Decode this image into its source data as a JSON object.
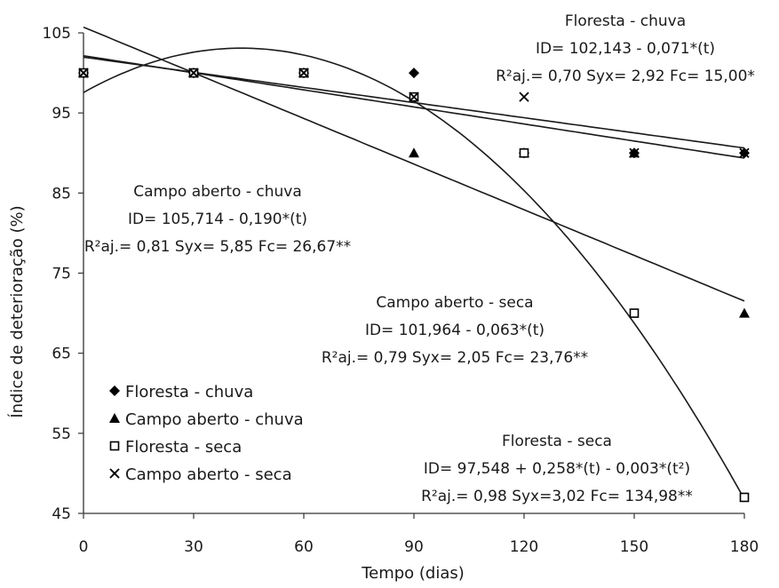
{
  "chart_data": {
    "type": "scatter",
    "xlabel": "Tempo (dias)",
    "ylabel": "Índice de deterioração (%)",
    "xlim": [
      0,
      180
    ],
    "ylim": [
      45,
      105
    ],
    "x_ticks": [
      0,
      30,
      60,
      90,
      120,
      150,
      180
    ],
    "y_ticks": [
      45,
      55,
      65,
      75,
      85,
      95,
      105
    ],
    "grid": false,
    "legend_position": "bottom-left",
    "series": [
      {
        "name": "Floresta - chuva",
        "marker": "diamond",
        "x": [
          0,
          30,
          60,
          90,
          120,
          150,
          180
        ],
        "y": [
          100,
          100,
          100,
          100,
          90,
          90,
          90
        ],
        "fit": {
          "type": "linear",
          "a": 102.143,
          "b": -0.071
        }
      },
      {
        "name": "Campo aberto - chuva",
        "marker": "triangle",
        "x": [
          0,
          30,
          60,
          90,
          120,
          150,
          180
        ],
        "y": [
          100,
          100,
          100,
          90,
          90,
          90,
          70
        ],
        "fit": {
          "type": "linear",
          "a": 105.714,
          "b": -0.19
        }
      },
      {
        "name": "Floresta - seca",
        "marker": "open-square",
        "x": [
          0,
          30,
          60,
          90,
          120,
          150,
          180
        ],
        "y": [
          100,
          100,
          100,
          97,
          90,
          70,
          47
        ],
        "fit": {
          "type": "quadratic",
          "a": 97.548,
          "b": 0.258,
          "c": -0.003
        }
      },
      {
        "name": "Campo aberto - seca",
        "marker": "cross",
        "x": [
          0,
          30,
          60,
          90,
          120,
          150,
          180
        ],
        "y": [
          100,
          100,
          100,
          97,
          97,
          90,
          90
        ],
        "fit": {
          "type": "linear",
          "a": 101.964,
          "b": -0.063
        }
      }
    ],
    "annotations": [
      {
        "lines": [
          "Floresta - chuva",
          "ID= 102,143 - 0,071*(t)",
          "R²aj.= 0,70 Syx= 2,92 Fc= 15,00*"
        ]
      },
      {
        "lines": [
          "Campo aberto - chuva",
          "ID= 105,714 - 0,190*(t)",
          "R²aj.= 0,81 Syx= 5,85 Fc= 26,67**"
        ]
      },
      {
        "lines": [
          "Campo aberto - seca",
          "ID= 101,964 - 0,063*(t)",
          "R²aj.= 0,79 Syx= 2,05 Fc= 23,76**"
        ]
      },
      {
        "lines": [
          "Floresta - seca",
          "ID= 97,548 + 0,258*(t) - 0,003*(t²)",
          "R²aj.= 0,98 Syx=3,02 Fc= 134,98**"
        ]
      }
    ]
  }
}
